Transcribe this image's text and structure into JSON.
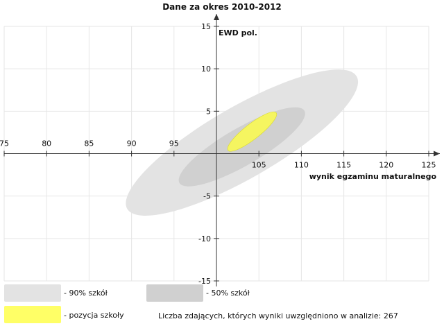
{
  "chart_data": {
    "type": "scatter",
    "title": "Dane za okres 2010-2012",
    "xlabel": "wynik egzaminu maturalnego",
    "ylabel": "EWD pol.",
    "xlim": [
      75,
      125
    ],
    "ylim": [
      -15,
      15
    ],
    "x_ticks": [
      "75",
      "80",
      "85",
      "90",
      "95",
      "105",
      "110",
      "115",
      "120",
      "125"
    ],
    "y_ticks": [
      "15",
      "10",
      "5",
      "-5",
      "-10",
      "-15"
    ],
    "grid": true,
    "ellipses": [
      {
        "name": "- 90% szkół",
        "center": [
          103,
          1.3
        ],
        "semi_major": 15.6,
        "semi_minor": 4.2,
        "angle_deg": 30,
        "color": "#e3e3e3"
      },
      {
        "name": "- 50% szkół",
        "center": [
          103,
          0.8
        ],
        "semi_major": 8.5,
        "semi_minor": 2.2,
        "angle_deg": 30,
        "color": "#d0d0d0"
      },
      {
        "name": "- pozycja szkoły",
        "center": [
          104.2,
          2.6
        ],
        "semi_major": 3.6,
        "semi_minor": 0.9,
        "angle_deg": 38,
        "color": "#f5f560"
      }
    ]
  },
  "legend": {
    "items": [
      {
        "label": "- 90% szkół",
        "color": "#e3e3e3"
      },
      {
        "label": "- 50% szkół",
        "color": "#d0d0d0"
      },
      {
        "label": "- pozycja szkoły",
        "color": "#ffff66"
      }
    ]
  },
  "note": "Liczba zdających, których wyniki uwzględniono w analizie: 267"
}
